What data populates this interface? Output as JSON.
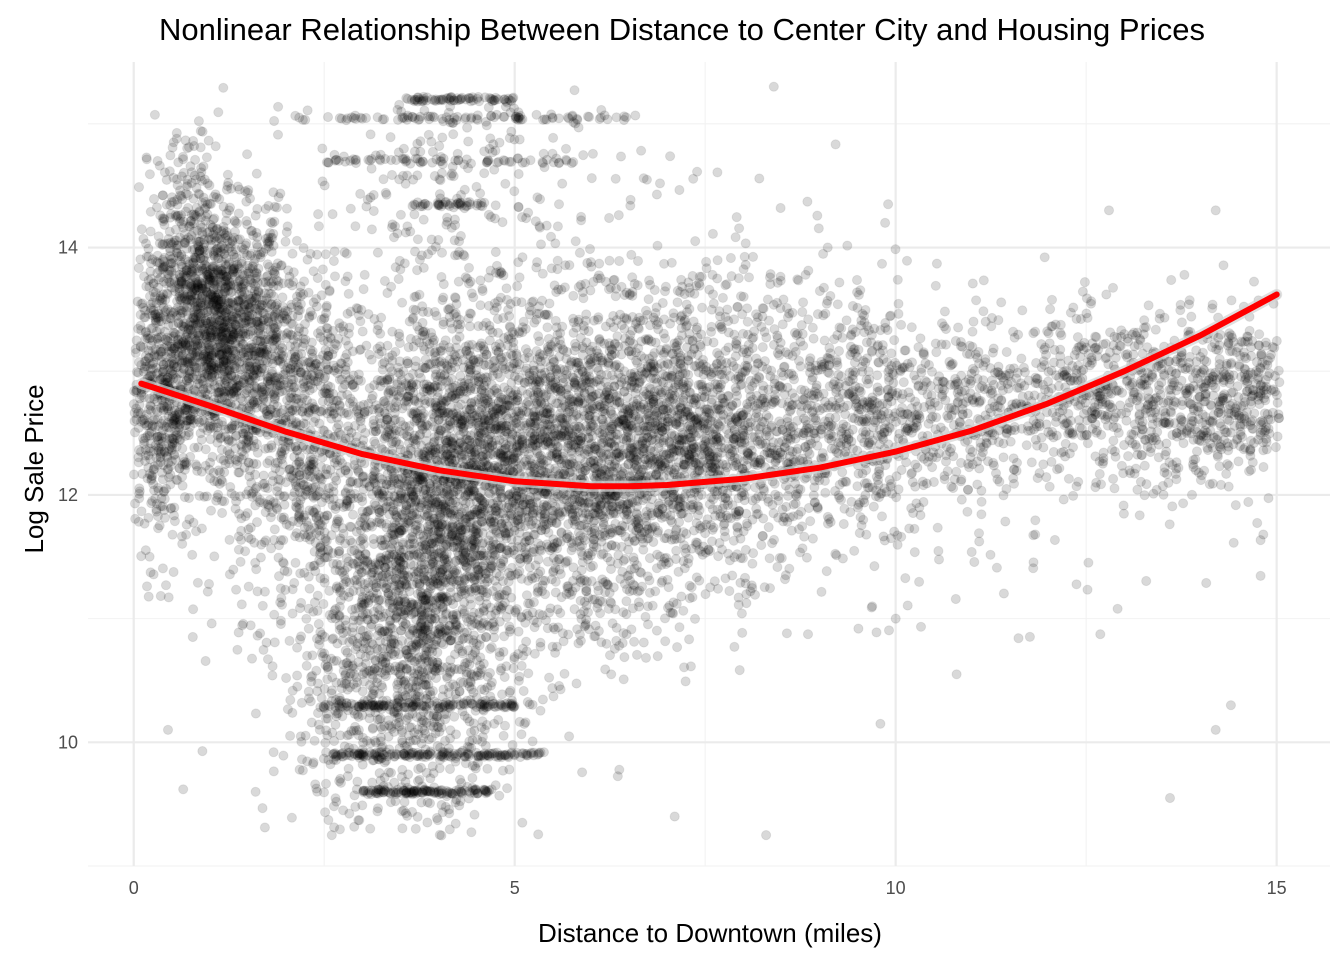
{
  "chart_data": {
    "type": "scatter",
    "title": "Nonlinear Relationship Between Distance to Center City and Housing Prices",
    "xlabel": "Distance to Downtown (miles)",
    "ylabel": "Log Sale Price",
    "xlim": [
      -0.6,
      15.7
    ],
    "ylim": [
      9.0,
      15.5
    ],
    "x_ticks": [
      0,
      5,
      10,
      15
    ],
    "y_ticks": [
      10,
      12,
      14
    ],
    "grid": true,
    "point_color": "#000000",
    "point_opacity": 0.15,
    "fit_color": "#ff0000",
    "fit_band_color": "#d3d3d3",
    "fit_line": {
      "type": "quadratic",
      "x": [
        0.1,
        1,
        2,
        3,
        4,
        5,
        6,
        6.5,
        7,
        8,
        9,
        10,
        11,
        12,
        13,
        14,
        15
      ],
      "y": [
        12.9,
        12.72,
        12.51,
        12.33,
        12.2,
        12.11,
        12.07,
        12.07,
        12.08,
        12.13,
        12.22,
        12.35,
        12.52,
        12.74,
        13.0,
        13.29,
        13.62
      ]
    },
    "clusters": [
      {
        "x": 1.1,
        "y": 13.3,
        "sx": 0.45,
        "sy": 0.5,
        "n": 1400
      },
      {
        "x": 0.35,
        "y": 12.8,
        "sx": 0.25,
        "sy": 0.6,
        "n": 500
      },
      {
        "x": 0.7,
        "y": 14.2,
        "sx": 0.3,
        "sy": 0.4,
        "n": 200
      },
      {
        "x": 2.1,
        "y": 12.6,
        "sx": 0.5,
        "sy": 0.7,
        "n": 900
      },
      {
        "x": 3.8,
        "y": 11.6,
        "sx": 0.6,
        "sy": 0.9,
        "n": 1600
      },
      {
        "x": 3.4,
        "y": 10.5,
        "sx": 0.8,
        "sy": 0.6,
        "n": 700
      },
      {
        "x": 4.5,
        "y": 12.4,
        "sx": 0.7,
        "sy": 0.6,
        "n": 900
      },
      {
        "x": 6.0,
        "y": 12.4,
        "sx": 0.9,
        "sy": 0.5,
        "n": 1300
      },
      {
        "x": 5.8,
        "y": 11.6,
        "sx": 0.9,
        "sy": 0.6,
        "n": 500
      },
      {
        "x": 7.7,
        "y": 12.4,
        "sx": 0.8,
        "sy": 0.5,
        "n": 900
      },
      {
        "x": 9.6,
        "y": 12.6,
        "sx": 0.6,
        "sy": 0.4,
        "n": 500
      },
      {
        "x": 11.2,
        "y": 12.7,
        "sx": 0.6,
        "sy": 0.35,
        "n": 300
      },
      {
        "x": 12.6,
        "y": 12.8,
        "sx": 0.5,
        "sy": 0.3,
        "n": 300
      },
      {
        "x": 13.7,
        "y": 12.7,
        "sx": 0.5,
        "sy": 0.35,
        "n": 300
      },
      {
        "x": 14.6,
        "y": 12.8,
        "sx": 0.4,
        "sy": 0.3,
        "n": 300
      },
      {
        "x": 7.0,
        "y": 13.2,
        "sx": 1.5,
        "sy": 0.6,
        "n": 500
      },
      {
        "x": 4.3,
        "y": 14.6,
        "sx": 1.0,
        "sy": 0.4,
        "n": 200
      }
    ],
    "uniform_noise": {
      "xmin": 0.0,
      "xmax": 15.0,
      "ymin": 10.8,
      "ymax": 13.8,
      "n": 350
    },
    "bands": [
      {
        "y": 15.2,
        "xmin": 3.5,
        "xmax": 5.0,
        "n": 70
      },
      {
        "y": 15.05,
        "xmin": 2.0,
        "xmax": 6.6,
        "n": 80
      },
      {
        "y": 14.7,
        "xmin": 2.5,
        "xmax": 5.8,
        "n": 60
      },
      {
        "y": 14.35,
        "xmin": 3.6,
        "xmax": 4.6,
        "n": 40
      },
      {
        "y": 9.9,
        "xmin": 2.6,
        "xmax": 5.4,
        "n": 150
      },
      {
        "y": 9.6,
        "xmin": 3.0,
        "xmax": 4.7,
        "n": 120
      },
      {
        "y": 10.3,
        "xmin": 2.4,
        "xmax": 5.0,
        "n": 120
      }
    ],
    "outliers": [
      {
        "x": 0.65,
        "y": 9.62
      },
      {
        "x": 0.45,
        "y": 10.1
      },
      {
        "x": 1.6,
        "y": 9.6
      },
      {
        "x": 8.3,
        "y": 9.25
      },
      {
        "x": 13.6,
        "y": 9.55
      },
      {
        "x": 9.8,
        "y": 10.15
      },
      {
        "x": 14.2,
        "y": 10.1
      },
      {
        "x": 14.4,
        "y": 10.3
      },
      {
        "x": 8.4,
        "y": 15.3
      },
      {
        "x": 12.8,
        "y": 14.3
      },
      {
        "x": 14.2,
        "y": 14.3
      },
      {
        "x": 9.9,
        "y": 14.35
      },
      {
        "x": 7.1,
        "y": 9.4
      },
      {
        "x": 5.1,
        "y": 9.35
      },
      {
        "x": 2.6,
        "y": 9.25
      },
      {
        "x": 10.8,
        "y": 10.55
      },
      {
        "x": 10.0,
        "y": 11.0
      }
    ]
  }
}
